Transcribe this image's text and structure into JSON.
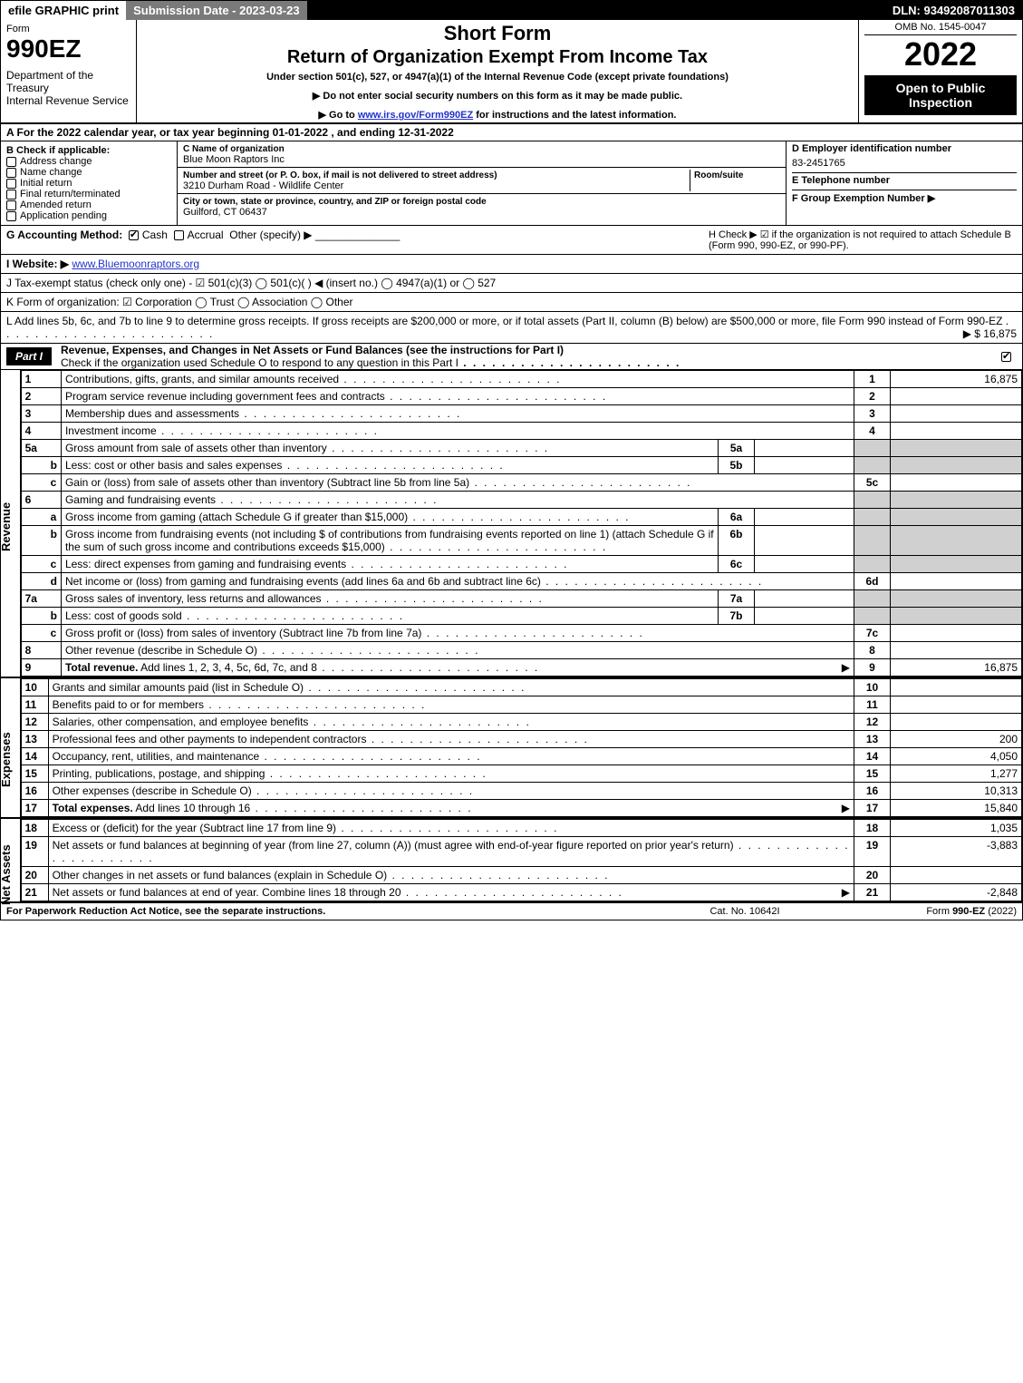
{
  "topbar": {
    "efile": "efile GRAPHIC print",
    "submission": "Submission Date - 2023-03-23",
    "dln": "DLN: 93492087011303"
  },
  "header": {
    "form_word": "Form",
    "form_num": "990EZ",
    "dept": "Department of the Treasury\nInternal Revenue Service",
    "short": "Short Form",
    "return_title": "Return of Organization Exempt From Income Tax",
    "under": "Under section 501(c), 527, or 4947(a)(1) of the Internal Revenue Code (except private foundations)",
    "ssn_line": "▶ Do not enter social security numbers on this form as it may be made public.",
    "goto_prefix": "▶ Go to ",
    "goto_link": "www.irs.gov/Form990EZ",
    "goto_suffix": " for instructions and the latest information.",
    "omb": "OMB No. 1545-0047",
    "year": "2022",
    "open": "Open to Public Inspection"
  },
  "lineA": "A  For the 2022 calendar year, or tax year beginning 01-01-2022 , and ending 12-31-2022",
  "secB": {
    "title": "B  Check if applicable:",
    "items": [
      "Address change",
      "Name change",
      "Initial return",
      "Final return/terminated",
      "Amended return",
      "Application pending"
    ]
  },
  "secC": {
    "name_lbl": "C Name of organization",
    "name": "Blue Moon Raptors Inc",
    "street_lbl": "Number and street (or P. O. box, if mail is not delivered to street address)",
    "room_lbl": "Room/suite",
    "street": "3210 Durham Road - Wildlife Center",
    "city_lbl": "City or town, state or province, country, and ZIP or foreign postal code",
    "city": "Guilford, CT  06437"
  },
  "secDEF": {
    "d_lbl": "D Employer identification number",
    "d_val": "83-2451765",
    "e_lbl": "E Telephone number",
    "e_val": "",
    "f_lbl": "F Group Exemption Number  ▶",
    "f_val": ""
  },
  "lineG": {
    "lbl": "G Accounting Method:",
    "cash": "Cash",
    "accrual": "Accrual",
    "other": "Other (specify) ▶",
    "h": "H  Check ▶ ☑ if the organization is not required to attach Schedule B (Form 990, 990-EZ, or 990-PF)."
  },
  "lineI": {
    "lbl": "I Website: ▶",
    "url": "www.Bluemoonraptors.org"
  },
  "lineJ": "J Tax-exempt status (check only one) - ☑ 501(c)(3)  ◯ 501(c)(  ) ◀ (insert no.)  ◯ 4947(a)(1) or  ◯ 527",
  "lineK": "K Form of organization:  ☑ Corporation  ◯ Trust  ◯ Association  ◯ Other",
  "lineL": {
    "text": "L Add lines 5b, 6c, and 7b to line 9 to determine gross receipts. If gross receipts are $200,000 or more, or if total assets (Part II, column (B) below) are $500,000 or more, file Form 990 instead of Form 990-EZ",
    "amount": "▶ $ 16,875"
  },
  "partI": {
    "tab": "Part I",
    "title": "Revenue, Expenses, and Changes in Net Assets or Fund Balances (see the instructions for Part I)",
    "sub": "Check if the organization used Schedule O to respond to any question in this Part I"
  },
  "sidebars": {
    "revenue": "Revenue",
    "expenses": "Expenses",
    "netassets": "Net Assets"
  },
  "rows": [
    {
      "n": "1",
      "d": "Contributions, gifts, grants, and similar amounts received",
      "rn": "1",
      "rv": "16,875"
    },
    {
      "n": "2",
      "d": "Program service revenue including government fees and contracts",
      "rn": "2",
      "rv": ""
    },
    {
      "n": "3",
      "d": "Membership dues and assessments",
      "rn": "3",
      "rv": ""
    },
    {
      "n": "4",
      "d": "Investment income",
      "rn": "4",
      "rv": ""
    },
    {
      "n": "5a",
      "d": "Gross amount from sale of assets other than inventory",
      "mn": "5a",
      "mv": "",
      "shade": true
    },
    {
      "n": "b",
      "d": "Less: cost or other basis and sales expenses",
      "mn": "5b",
      "mv": "",
      "shade": true
    },
    {
      "n": "c",
      "d": "Gain or (loss) from sale of assets other than inventory (Subtract line 5b from line 5a)",
      "rn": "5c",
      "rv": ""
    },
    {
      "n": "6",
      "d": "Gaming and fundraising events",
      "shade": true,
      "noright": true
    },
    {
      "n": "a",
      "d": "Gross income from gaming (attach Schedule G if greater than $15,000)",
      "mn": "6a",
      "mv": "",
      "shade": true
    },
    {
      "n": "b",
      "d": "Gross income from fundraising events (not including $                    of contributions from fundraising events reported on line 1) (attach Schedule G if the sum of such gross income and contributions exceeds $15,000)",
      "mn": "6b",
      "mv": "",
      "shade": true
    },
    {
      "n": "c",
      "d": "Less: direct expenses from gaming and fundraising events",
      "mn": "6c",
      "mv": "",
      "shade": true
    },
    {
      "n": "d",
      "d": "Net income or (loss) from gaming and fundraising events (add lines 6a and 6b and subtract line 6c)",
      "rn": "6d",
      "rv": ""
    },
    {
      "n": "7a",
      "d": "Gross sales of inventory, less returns and allowances",
      "mn": "7a",
      "mv": "",
      "shade": true
    },
    {
      "n": "b",
      "d": "Less: cost of goods sold",
      "mn": "7b",
      "mv": "",
      "shade": true
    },
    {
      "n": "c",
      "d": "Gross profit or (loss) from sales of inventory (Subtract line 7b from line 7a)",
      "rn": "7c",
      "rv": ""
    },
    {
      "n": "8",
      "d": "Other revenue (describe in Schedule O)",
      "rn": "8",
      "rv": ""
    },
    {
      "n": "9",
      "d": "Total revenue. Add lines 1, 2, 3, 4, 5c, 6d, 7c, and 8",
      "rn": "9",
      "rv": "16,875",
      "bold": true,
      "arrow": true
    }
  ],
  "exp_rows": [
    {
      "n": "10",
      "d": "Grants and similar amounts paid (list in Schedule O)",
      "rn": "10",
      "rv": ""
    },
    {
      "n": "11",
      "d": "Benefits paid to or for members",
      "rn": "11",
      "rv": ""
    },
    {
      "n": "12",
      "d": "Salaries, other compensation, and employee benefits",
      "rn": "12",
      "rv": ""
    },
    {
      "n": "13",
      "d": "Professional fees and other payments to independent contractors",
      "rn": "13",
      "rv": "200"
    },
    {
      "n": "14",
      "d": "Occupancy, rent, utilities, and maintenance",
      "rn": "14",
      "rv": "4,050"
    },
    {
      "n": "15",
      "d": "Printing, publications, postage, and shipping",
      "rn": "15",
      "rv": "1,277"
    },
    {
      "n": "16",
      "d": "Other expenses (describe in Schedule O)",
      "rn": "16",
      "rv": "10,313"
    },
    {
      "n": "17",
      "d": "Total expenses. Add lines 10 through 16",
      "rn": "17",
      "rv": "15,840",
      "bold": true,
      "arrow": true
    }
  ],
  "na_rows": [
    {
      "n": "18",
      "d": "Excess or (deficit) for the year (Subtract line 17 from line 9)",
      "rn": "18",
      "rv": "1,035"
    },
    {
      "n": "19",
      "d": "Net assets or fund balances at beginning of year (from line 27, column (A)) (must agree with end-of-year figure reported on prior year's return)",
      "rn": "19",
      "rv": "-3,883"
    },
    {
      "n": "20",
      "d": "Other changes in net assets or fund balances (explain in Schedule O)",
      "rn": "20",
      "rv": ""
    },
    {
      "n": "21",
      "d": "Net assets or fund balances at end of year. Combine lines 18 through 20",
      "rn": "21",
      "rv": "-2,848",
      "arrow": true
    }
  ],
  "footer": {
    "left": "For Paperwork Reduction Act Notice, see the separate instructions.",
    "mid": "Cat. No. 10642I",
    "right": "Form 990-EZ (2022)"
  }
}
